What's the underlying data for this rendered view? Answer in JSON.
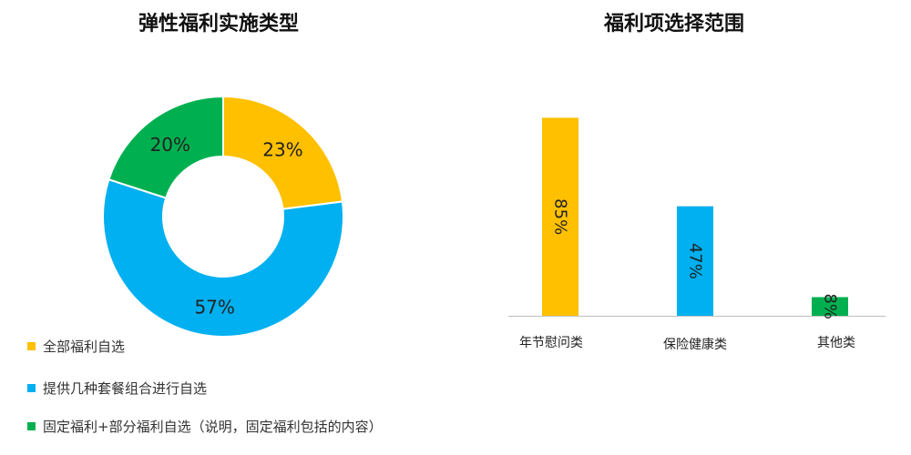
{
  "chart_data": [
    {
      "type": "pie",
      "donut": true,
      "title": "弹性福利实施类型",
      "slices": [
        {
          "name": "全部福利自选",
          "value": 23,
          "label": "23%",
          "color": "#FFC000"
        },
        {
          "name": "提供几种套餐组合进行自选",
          "value": 57,
          "label": "57%",
          "color": "#00B0F0"
        },
        {
          "name": "固定福利+部分福利自选（说明，固定福利包括的内容）",
          "value": 20,
          "label": "20%",
          "color": "#00B050"
        }
      ],
      "legend": "bottom-left"
    },
    {
      "type": "bar",
      "title": "福利项选择范围",
      "categories": [
        "年节慰问类",
        "保险健康类",
        "其他类"
      ],
      "values": [
        85,
        47,
        8
      ],
      "value_labels": [
        "85%",
        "47%",
        "8%"
      ],
      "colors": [
        "#FFC000",
        "#00B0F0",
        "#00B050"
      ],
      "ylim": [
        0,
        100
      ],
      "grid": false
    }
  ]
}
